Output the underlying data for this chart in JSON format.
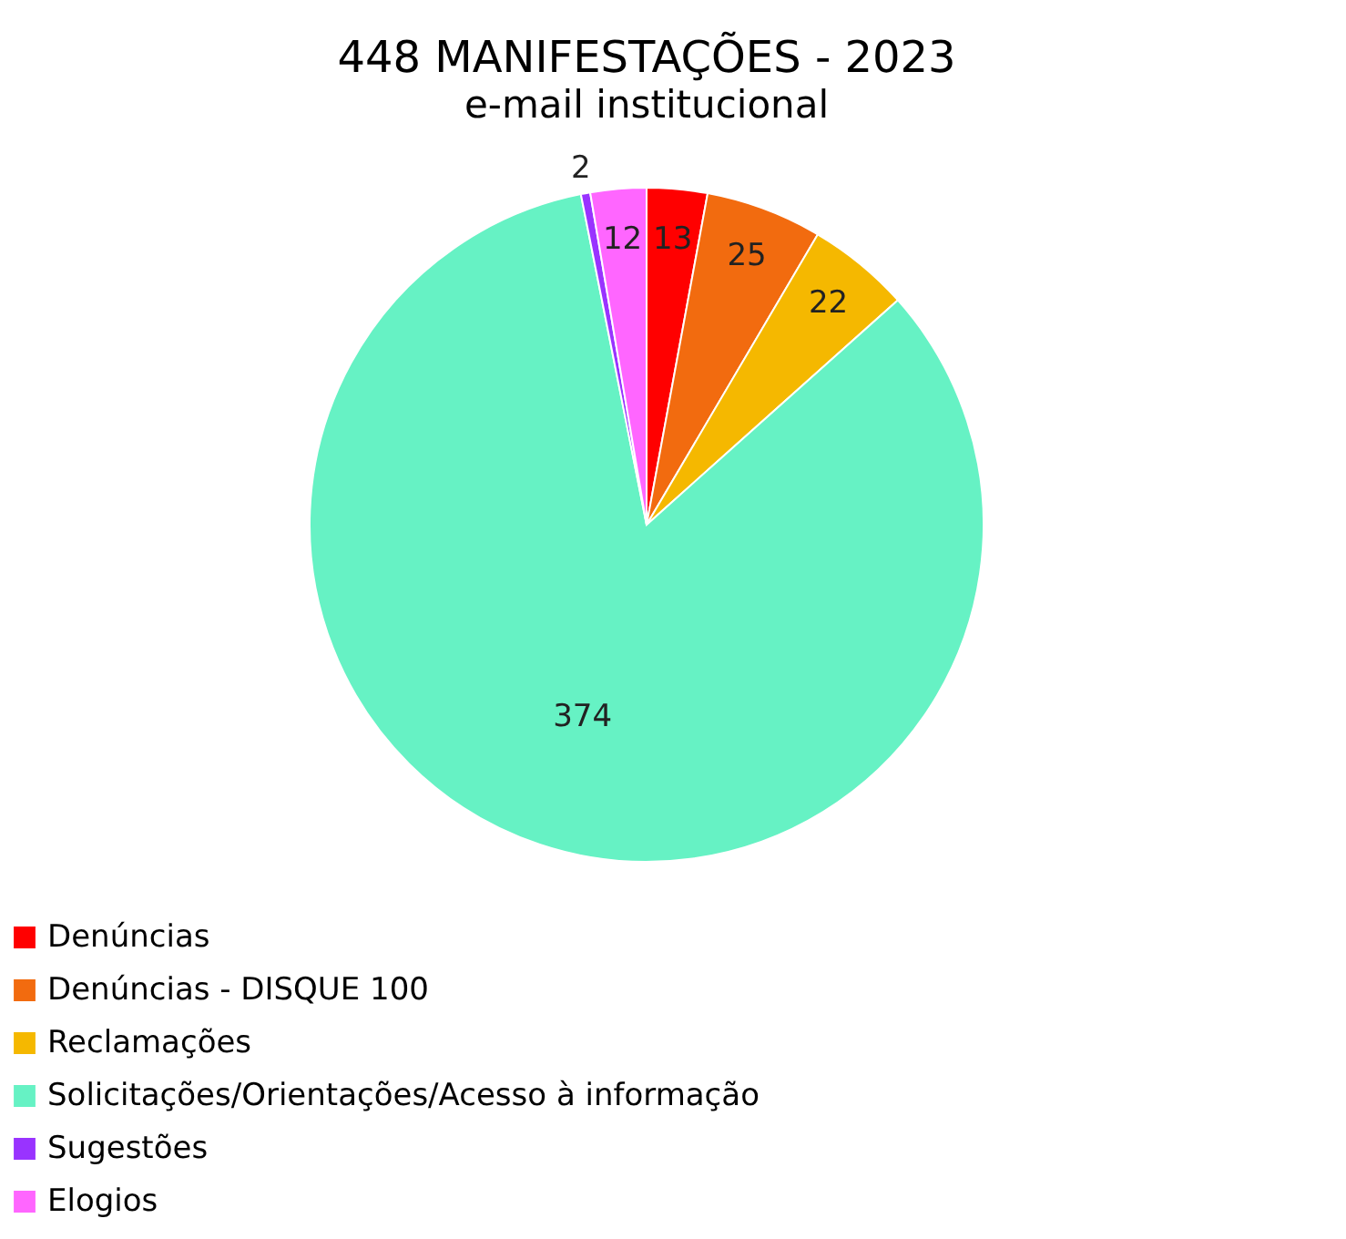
{
  "chart_data": {
    "type": "pie",
    "title": "448 MANIFESTAÇÕES - 2023",
    "subtitle": "e-mail institucional",
    "categories": [
      "Denúncias",
      "Denúncias - DISQUE 100",
      "Reclamações",
      "Solicitações/Orientações/Acesso à informação",
      "Sugestões",
      "Elogios"
    ],
    "values": [
      13,
      25,
      22,
      374,
      2,
      12
    ],
    "colors": [
      "#ff0000",
      "#f26b0f",
      "#f5b800",
      "#66f2c4",
      "#9933ff",
      "#ff66ff"
    ],
    "data_labels": true,
    "legend": "bottom"
  }
}
